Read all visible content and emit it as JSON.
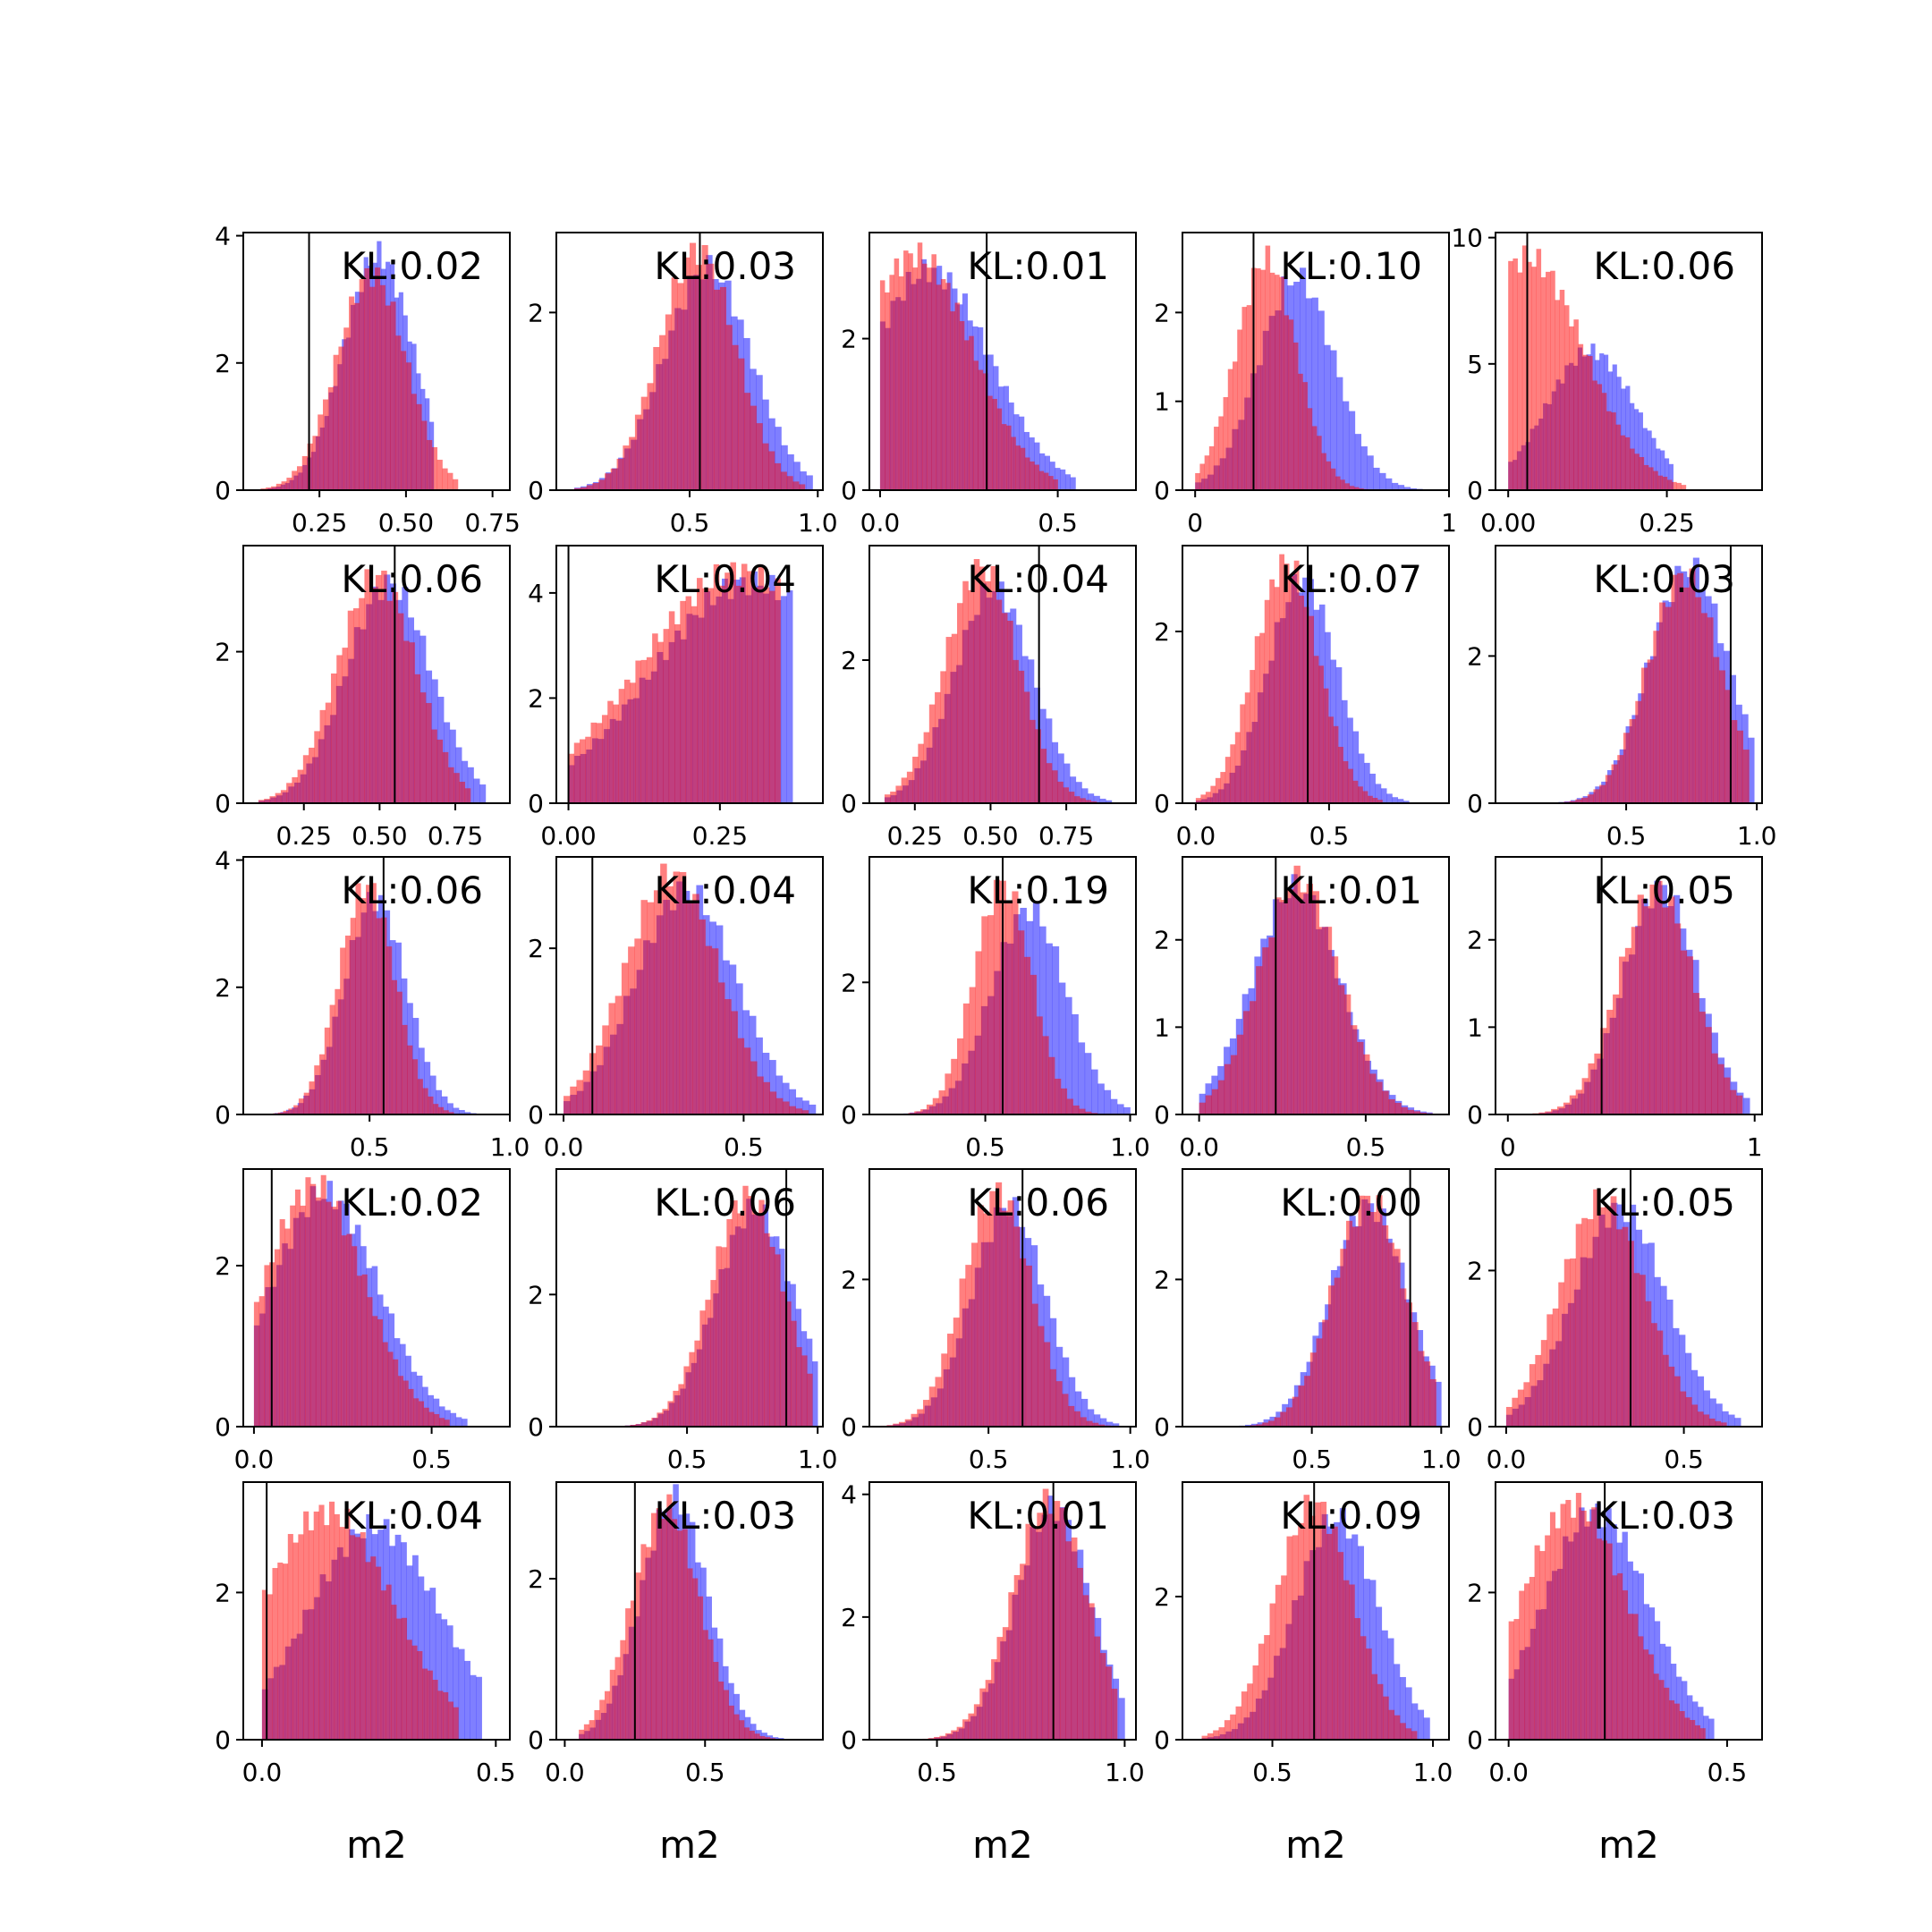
{
  "chart_data": {
    "type": "grid-histogram",
    "rows": 5,
    "cols": 5,
    "xlabel": "m2",
    "series_colors": {
      "blue": "#0000ff",
      "red": "#ff0000"
    },
    "series_opacity": 0.5,
    "panels": [
      {
        "kl": "KL:0.02",
        "xlim": [
          0.03,
          0.8
        ],
        "xticks": [
          0.25,
          0.5,
          0.75
        ],
        "xtick_labels": [
          "0.25",
          "0.50",
          "0.75"
        ],
        "ymax": 4.05,
        "yticks": [
          0,
          2,
          4
        ],
        "vline": 0.22,
        "red": {
          "mu": 0.4,
          "sd": 0.1,
          "lo": 0.08,
          "hi": 0.65,
          "peak": 3.4
        },
        "blue": {
          "mu": 0.42,
          "sd": 0.1,
          "lo": 0.1,
          "hi": 0.58,
          "peak": 3.7
        }
      },
      {
        "kl": "KL:0.03",
        "xlim": [
          -0.02,
          1.02
        ],
        "xticks": [
          0.5,
          1.0
        ],
        "xtick_labels": [
          "0.5",
          "1.0"
        ],
        "ymax": 2.9,
        "yticks": [
          0,
          2
        ],
        "vline": 0.54,
        "red": {
          "mu": 0.53,
          "sd": 0.15,
          "lo": 0.05,
          "hi": 0.95,
          "peak": 2.7
        },
        "blue": {
          "mu": 0.57,
          "sd": 0.17,
          "lo": 0.05,
          "hi": 0.98,
          "peak": 2.5
        }
      },
      {
        "kl": "KL:0.01",
        "xlim": [
          -0.03,
          0.72
        ],
        "xticks": [
          0.0,
          0.5
        ],
        "xtick_labels": [
          "0.0",
          "0.5"
        ],
        "ymax": 3.4,
        "yticks": [
          0,
          2
        ],
        "vline": 0.3,
        "red": {
          "mu": 0.1,
          "sd": 0.16,
          "lo": 0.0,
          "hi": 0.5,
          "peak": 3.1
        },
        "blue": {
          "mu": 0.14,
          "sd": 0.17,
          "lo": 0.0,
          "hi": 0.55,
          "peak": 2.9
        }
      },
      {
        "kl": "KL:0.10",
        "xlim": [
          -0.05,
          1.0
        ],
        "xticks": [
          0.0,
          1.0
        ],
        "xtick_labels": [
          "0",
          "1"
        ],
        "ymax": 2.9,
        "yticks": [
          0,
          1,
          2
        ],
        "vline": 0.23,
        "red": {
          "mu": 0.28,
          "sd": 0.12,
          "lo": 0.0,
          "hi": 0.7,
          "peak": 2.6
        },
        "blue": {
          "mu": 0.4,
          "sd": 0.15,
          "lo": 0.0,
          "hi": 0.92,
          "peak": 2.4
        }
      },
      {
        "kl": "KL:0.06",
        "xlim": [
          -0.02,
          0.4
        ],
        "xticks": [
          0.0,
          0.25
        ],
        "xtick_labels": [
          "0.00",
          "0.25"
        ],
        "ymax": 10.2,
        "yticks": [
          0,
          5,
          10
        ],
        "vline": 0.03,
        "red": {
          "mu": 0.03,
          "sd": 0.09,
          "lo": 0.0,
          "hi": 0.28,
          "peak": 9.2
        },
        "blue": {
          "mu": 0.13,
          "sd": 0.07,
          "lo": 0.0,
          "hi": 0.26,
          "peak": 5.5
        }
      },
      {
        "kl": "KL:0.06",
        "xlim": [
          0.05,
          0.93
        ],
        "xticks": [
          0.25,
          0.5,
          0.75
        ],
        "xtick_labels": [
          "0.25",
          "0.50",
          "0.75"
        ],
        "ymax": 3.4,
        "yticks": [
          0,
          2
        ],
        "vline": 0.55,
        "red": {
          "mu": 0.49,
          "sd": 0.13,
          "lo": 0.1,
          "hi": 0.8,
          "peak": 3.0
        },
        "blue": {
          "mu": 0.53,
          "sd": 0.14,
          "lo": 0.1,
          "hi": 0.85,
          "peak": 2.9
        }
      },
      {
        "kl": "KL:0.04",
        "xlim": [
          -0.02,
          0.42
        ],
        "xticks": [
          0.0,
          0.25
        ],
        "xtick_labels": [
          "0.00",
          "0.25"
        ],
        "ymax": 4.9,
        "yticks": [
          0,
          2,
          4
        ],
        "vline": 0.0,
        "red": {
          "mu": 0.28,
          "sd": 0.16,
          "lo": 0.0,
          "hi": 0.35,
          "peak": 4.4
        },
        "blue": {
          "mu": 0.3,
          "sd": 0.16,
          "lo": 0.0,
          "hi": 0.37,
          "peak": 4.2
        }
      },
      {
        "kl": "KL:0.04",
        "xlim": [
          0.1,
          0.98
        ],
        "xticks": [
          0.25,
          0.5,
          0.75
        ],
        "xtick_labels": [
          "0.25",
          "0.50",
          "0.75"
        ],
        "ymax": 3.6,
        "yticks": [
          0,
          2
        ],
        "vline": 0.66,
        "red": {
          "mu": 0.47,
          "sd": 0.12,
          "lo": 0.15,
          "hi": 0.85,
          "peak": 3.3
        },
        "blue": {
          "mu": 0.51,
          "sd": 0.13,
          "lo": 0.15,
          "hi": 0.9,
          "peak": 3.0
        }
      },
      {
        "kl": "KL:0.07",
        "xlim": [
          -0.05,
          0.95
        ],
        "xticks": [
          0.0,
          0.5
        ],
        "xtick_labels": [
          "0.0",
          "0.5"
        ],
        "ymax": 3.0,
        "yticks": [
          0,
          2
        ],
        "vline": 0.42,
        "red": {
          "mu": 0.34,
          "sd": 0.12,
          "lo": 0.0,
          "hi": 0.7,
          "peak": 2.8
        },
        "blue": {
          "mu": 0.4,
          "sd": 0.13,
          "lo": 0.0,
          "hi": 0.8,
          "peak": 2.6
        }
      },
      {
        "kl": "KL:0.03",
        "xlim": [
          0.0,
          1.02
        ],
        "xticks": [
          0.5,
          1.0
        ],
        "xtick_labels": [
          "0.5",
          "1.0"
        ],
        "ymax": 3.5,
        "yticks": [
          0,
          2
        ],
        "vline": 0.9,
        "red": {
          "mu": 0.72,
          "sd": 0.14,
          "lo": 0.1,
          "hi": 0.97,
          "peak": 3.1
        },
        "blue": {
          "mu": 0.74,
          "sd": 0.15,
          "lo": 0.1,
          "hi": 0.99,
          "peak": 3.2
        }
      },
      {
        "kl": "KL:0.06",
        "xlim": [
          0.05,
          1.0
        ],
        "xticks": [
          0.5,
          1.0
        ],
        "xtick_labels": [
          "0.5",
          "1.0"
        ],
        "ymax": 4.05,
        "yticks": [
          0,
          2,
          4
        ],
        "vline": 0.55,
        "red": {
          "mu": 0.49,
          "sd": 0.1,
          "lo": 0.1,
          "hi": 0.8,
          "peak": 3.6
        },
        "blue": {
          "mu": 0.52,
          "sd": 0.11,
          "lo": 0.1,
          "hi": 0.88,
          "peak": 3.4
        }
      },
      {
        "kl": "KL:0.04",
        "xlim": [
          -0.02,
          0.72
        ],
        "xticks": [
          0.0,
          0.5
        ],
        "xtick_labels": [
          "0.0",
          "0.5"
        ],
        "ymax": 3.1,
        "yticks": [
          0,
          2
        ],
        "vline": 0.08,
        "red": {
          "mu": 0.3,
          "sd": 0.13,
          "lo": 0.0,
          "hi": 0.68,
          "peak": 2.9
        },
        "blue": {
          "mu": 0.34,
          "sd": 0.14,
          "lo": 0.0,
          "hi": 0.7,
          "peak": 2.7
        }
      },
      {
        "kl": "KL:0.19",
        "xlim": [
          0.1,
          1.02
        ],
        "xticks": [
          0.5,
          1.0
        ],
        "xtick_labels": [
          "0.5",
          "1.0"
        ],
        "ymax": 3.9,
        "yticks": [
          0,
          2
        ],
        "vline": 0.56,
        "red": {
          "mu": 0.56,
          "sd": 0.1,
          "lo": 0.15,
          "hi": 0.95,
          "peak": 3.5
        },
        "blue": {
          "mu": 0.65,
          "sd": 0.13,
          "lo": 0.15,
          "hi": 1.0,
          "peak": 3.1
        }
      },
      {
        "kl": "KL:0.01",
        "xlim": [
          -0.05,
          0.75
        ],
        "xticks": [
          0.0,
          0.5
        ],
        "xtick_labels": [
          "0.0",
          "0.5"
        ],
        "ymax": 2.95,
        "yticks": [
          0,
          1,
          2
        ],
        "vline": 0.23,
        "red": {
          "mu": 0.3,
          "sd": 0.12,
          "lo": 0.0,
          "hi": 0.72,
          "peak": 2.7
        },
        "blue": {
          "mu": 0.29,
          "sd": 0.13,
          "lo": 0.0,
          "hi": 0.7,
          "peak": 2.6
        }
      },
      {
        "kl": "KL:0.05",
        "xlim": [
          -0.05,
          1.03
        ],
        "xticks": [
          0.0,
          1.0
        ],
        "xtick_labels": [
          "0",
          "1"
        ],
        "ymax": 2.95,
        "yticks": [
          0,
          1,
          2
        ],
        "vline": 0.38,
        "red": {
          "mu": 0.6,
          "sd": 0.15,
          "lo": 0.0,
          "hi": 0.95,
          "peak": 2.6
        },
        "blue": {
          "mu": 0.62,
          "sd": 0.15,
          "lo": 0.0,
          "hi": 0.98,
          "peak": 2.6
        }
      },
      {
        "kl": "KL:0.02",
        "xlim": [
          -0.03,
          0.72
        ],
        "xticks": [
          0.0,
          0.5
        ],
        "xtick_labels": [
          "0.0",
          "0.5"
        ],
        "ymax": 3.2,
        "yticks": [
          0,
          2
        ],
        "vline": 0.05,
        "red": {
          "mu": 0.17,
          "sd": 0.14,
          "lo": 0.0,
          "hi": 0.55,
          "peak": 3.0
        },
        "blue": {
          "mu": 0.2,
          "sd": 0.15,
          "lo": 0.0,
          "hi": 0.6,
          "peak": 2.9
        }
      },
      {
        "kl": "KL:0.06",
        "xlim": [
          0.0,
          1.02
        ],
        "xticks": [
          0.5,
          1.0
        ],
        "xtick_labels": [
          "0.5",
          "1.0"
        ],
        "ymax": 3.9,
        "yticks": [
          0,
          2
        ],
        "vline": 0.88,
        "red": {
          "mu": 0.73,
          "sd": 0.14,
          "lo": 0.2,
          "hi": 0.98,
          "peak": 3.5
        },
        "blue": {
          "mu": 0.76,
          "sd": 0.15,
          "lo": 0.2,
          "hi": 1.0,
          "peak": 3.3
        }
      },
      {
        "kl": "KL:0.06",
        "xlim": [
          0.08,
          1.02
        ],
        "xticks": [
          0.5,
          1.0
        ],
        "xtick_labels": [
          "0.5",
          "1.0"
        ],
        "ymax": 3.5,
        "yticks": [
          0,
          2
        ],
        "vline": 0.62,
        "red": {
          "mu": 0.53,
          "sd": 0.12,
          "lo": 0.12,
          "hi": 0.93,
          "peak": 3.2
        },
        "blue": {
          "mu": 0.57,
          "sd": 0.13,
          "lo": 0.12,
          "hi": 0.96,
          "peak": 3.0
        }
      },
      {
        "kl": "KL:0.00",
        "xlim": [
          0.0,
          1.03
        ],
        "xticks": [
          0.5,
          1.0
        ],
        "xtick_labels": [
          "0.5",
          "1.0"
        ],
        "ymax": 3.5,
        "yticks": [
          0,
          2
        ],
        "vline": 0.88,
        "red": {
          "mu": 0.72,
          "sd": 0.14,
          "lo": 0.1,
          "hi": 0.98,
          "peak": 3.1
        },
        "blue": {
          "mu": 0.72,
          "sd": 0.15,
          "lo": 0.1,
          "hi": 1.0,
          "peak": 3.0
        }
      },
      {
        "kl": "KL:0.05",
        "xlim": [
          -0.03,
          0.72
        ],
        "xticks": [
          0.0,
          0.5
        ],
        "xtick_labels": [
          "0.0",
          "0.5"
        ],
        "ymax": 3.3,
        "yticks": [
          0,
          2
        ],
        "vline": 0.35,
        "red": {
          "mu": 0.27,
          "sd": 0.12,
          "lo": 0.0,
          "hi": 0.62,
          "peak": 2.9
        },
        "blue": {
          "mu": 0.32,
          "sd": 0.13,
          "lo": 0.0,
          "hi": 0.66,
          "peak": 2.8
        }
      },
      {
        "kl": "KL:0.04",
        "xlim": [
          -0.04,
          0.53
        ],
        "xticks": [
          0.0,
          0.5
        ],
        "xtick_labels": [
          "0.0",
          "0.5"
        ],
        "ymax": 3.5,
        "yticks": [
          0,
          2
        ],
        "vline": 0.01,
        "red": {
          "mu": 0.14,
          "sd": 0.14,
          "lo": 0.0,
          "hi": 0.42,
          "peak": 3.1
        },
        "blue": {
          "mu": 0.24,
          "sd": 0.14,
          "lo": 0.0,
          "hi": 0.47,
          "peak": 2.9
        }
      },
      {
        "kl": "KL:0.03",
        "xlim": [
          -0.03,
          0.92
        ],
        "xticks": [
          0.0,
          0.5
        ],
        "xtick_labels": [
          "0.0",
          "0.5"
        ],
        "ymax": 3.2,
        "yticks": [
          0,
          2
        ],
        "vline": 0.25,
        "red": {
          "mu": 0.36,
          "sd": 0.12,
          "lo": 0.05,
          "hi": 0.75,
          "peak": 2.9
        },
        "blue": {
          "mu": 0.39,
          "sd": 0.12,
          "lo": 0.05,
          "hi": 0.8,
          "peak": 3.0
        }
      },
      {
        "kl": "KL:0.01",
        "xlim": [
          0.32,
          1.03
        ],
        "xticks": [
          0.5,
          1.0
        ],
        "xtick_labels": [
          "0.5",
          "1.0"
        ],
        "ymax": 4.2,
        "yticks": [
          0,
          2,
          4
        ],
        "vline": 0.81,
        "red": {
          "mu": 0.8,
          "sd": 0.1,
          "lo": 0.4,
          "hi": 0.98,
          "peak": 3.9
        },
        "blue": {
          "mu": 0.81,
          "sd": 0.1,
          "lo": 0.4,
          "hi": 1.0,
          "peak": 3.8
        }
      },
      {
        "kl": "KL:0.09",
        "xlim": [
          0.22,
          1.05
        ],
        "xticks": [
          0.5,
          1.0
        ],
        "xtick_labels": [
          "0.5",
          "1.0"
        ],
        "ymax": 3.6,
        "yticks": [
          0,
          2
        ],
        "vline": 0.63,
        "red": {
          "mu": 0.63,
          "sd": 0.12,
          "lo": 0.28,
          "hi": 0.95,
          "peak": 3.3
        },
        "blue": {
          "mu": 0.7,
          "sd": 0.13,
          "lo": 0.28,
          "hi": 0.99,
          "peak": 3.1
        }
      },
      {
        "kl": "KL:0.03",
        "xlim": [
          -0.03,
          0.58
        ],
        "xticks": [
          0.0,
          0.5
        ],
        "xtick_labels": [
          "0.0",
          "0.5"
        ],
        "ymax": 3.5,
        "yticks": [
          0,
          2
        ],
        "vline": 0.22,
        "red": {
          "mu": 0.15,
          "sd": 0.12,
          "lo": 0.0,
          "hi": 0.45,
          "peak": 3.2
        },
        "blue": {
          "mu": 0.2,
          "sd": 0.12,
          "lo": 0.0,
          "hi": 0.47,
          "peak": 3.1
        }
      }
    ]
  }
}
